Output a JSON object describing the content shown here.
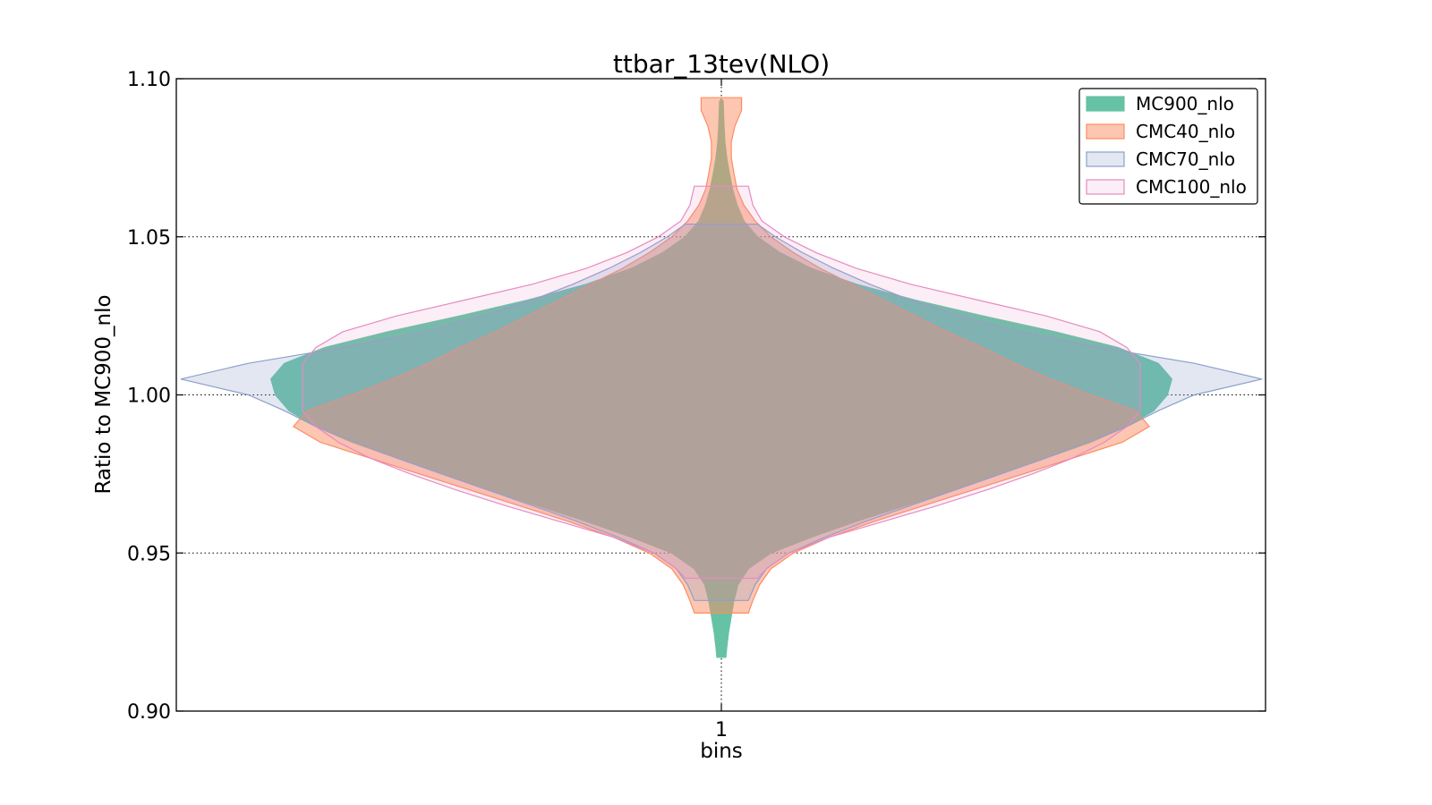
{
  "chart_data": {
    "type": "violin",
    "title": "ttbar_13tev(NLO)",
    "xlabel": "bins",
    "ylabel": "Ratio to MC900_nlo",
    "categories": [
      "1"
    ],
    "ylim": [
      0.9,
      1.1
    ],
    "yticks": [
      0.9,
      0.95,
      1.0,
      1.05,
      1.1
    ],
    "ytick_labels": [
      "0.90",
      "0.95",
      "1.00",
      "1.05",
      "1.10"
    ],
    "grid": true,
    "legend_position": "top-right",
    "series": [
      {
        "name": "MC900_nlo",
        "fill": "#66c2a5",
        "stroke": "#66c2a5",
        "fill_opacity": 1.0,
        "min": 0.917,
        "max": 1.093,
        "profile": [
          [
            0.917,
            0.01
          ],
          [
            0.92,
            0.012
          ],
          [
            0.925,
            0.016
          ],
          [
            0.93,
            0.022
          ],
          [
            0.935,
            0.028
          ],
          [
            0.94,
            0.037
          ],
          [
            0.945,
            0.06
          ],
          [
            0.95,
            0.11
          ],
          [
            0.955,
            0.2
          ],
          [
            0.96,
            0.3
          ],
          [
            0.965,
            0.41
          ],
          [
            0.97,
            0.52
          ],
          [
            0.975,
            0.62
          ],
          [
            0.98,
            0.72
          ],
          [
            0.985,
            0.82
          ],
          [
            0.99,
            0.9
          ],
          [
            0.995,
            0.96
          ],
          [
            1.0,
            0.99
          ],
          [
            1.005,
            1.0
          ],
          [
            1.01,
            0.97
          ],
          [
            1.015,
            0.88
          ],
          [
            1.02,
            0.74
          ],
          [
            1.025,
            0.58
          ],
          [
            1.03,
            0.43
          ],
          [
            1.035,
            0.3
          ],
          [
            1.04,
            0.2
          ],
          [
            1.045,
            0.13
          ],
          [
            1.05,
            0.08
          ],
          [
            1.055,
            0.05
          ],
          [
            1.06,
            0.035
          ],
          [
            1.065,
            0.025
          ],
          [
            1.07,
            0.018
          ],
          [
            1.075,
            0.012
          ],
          [
            1.08,
            0.008
          ],
          [
            1.085,
            0.006
          ],
          [
            1.093,
            0.004
          ]
        ]
      },
      {
        "name": "CMC40_nlo",
        "fill": "#fc8d62",
        "stroke": "#fc8d62",
        "fill_opacity": 0.5,
        "min": 0.931,
        "max": 1.094,
        "profile": [
          [
            0.931,
            0.06
          ],
          [
            0.935,
            0.07
          ],
          [
            0.94,
            0.085
          ],
          [
            0.945,
            0.11
          ],
          [
            0.95,
            0.16
          ],
          [
            0.955,
            0.24
          ],
          [
            0.96,
            0.34
          ],
          [
            0.965,
            0.45
          ],
          [
            0.97,
            0.56
          ],
          [
            0.975,
            0.67
          ],
          [
            0.98,
            0.78
          ],
          [
            0.985,
            0.89
          ],
          [
            0.99,
            0.95
          ],
          [
            0.995,
            0.92
          ],
          [
            1.0,
            0.82
          ],
          [
            1.005,
            0.73
          ],
          [
            1.01,
            0.65
          ],
          [
            1.015,
            0.58
          ],
          [
            1.02,
            0.5
          ],
          [
            1.025,
            0.43
          ],
          [
            1.03,
            0.36
          ],
          [
            1.035,
            0.29
          ],
          [
            1.04,
            0.22
          ],
          [
            1.045,
            0.16
          ],
          [
            1.05,
            0.11
          ],
          [
            1.055,
            0.075
          ],
          [
            1.06,
            0.05
          ],
          [
            1.065,
            0.035
          ],
          [
            1.07,
            0.028
          ],
          [
            1.075,
            0.022
          ],
          [
            1.08,
            0.022
          ],
          [
            1.085,
            0.03
          ],
          [
            1.09,
            0.045
          ],
          [
            1.094,
            0.045
          ]
        ]
      },
      {
        "name": "CMC70_nlo",
        "fill": "#8da0cb",
        "stroke": "#8da0cb",
        "fill_opacity": 0.25,
        "min": 0.935,
        "max": 1.054,
        "profile": [
          [
            0.935,
            0.06
          ],
          [
            0.94,
            0.075
          ],
          [
            0.945,
            0.1
          ],
          [
            0.95,
            0.15
          ],
          [
            0.955,
            0.23
          ],
          [
            0.96,
            0.32
          ],
          [
            0.965,
            0.42
          ],
          [
            0.97,
            0.52
          ],
          [
            0.975,
            0.62
          ],
          [
            0.98,
            0.72
          ],
          [
            0.985,
            0.81
          ],
          [
            0.99,
            0.9
          ],
          [
            0.995,
            0.97
          ],
          [
            1.0,
            1.05
          ],
          [
            1.005,
            1.2
          ],
          [
            1.01,
            1.05
          ],
          [
            1.015,
            0.84
          ],
          [
            1.02,
            0.66
          ],
          [
            1.025,
            0.53
          ],
          [
            1.03,
            0.42
          ],
          [
            1.035,
            0.33
          ],
          [
            1.04,
            0.25
          ],
          [
            1.045,
            0.18
          ],
          [
            1.05,
            0.12
          ],
          [
            1.054,
            0.08
          ]
        ]
      },
      {
        "name": "CMC100_nlo",
        "fill": "#e78ac3",
        "stroke": "#e78ac3",
        "fill_opacity": 0.15,
        "min": 0.942,
        "max": 1.066,
        "profile": [
          [
            0.942,
            0.08
          ],
          [
            0.945,
            0.1
          ],
          [
            0.95,
            0.15
          ],
          [
            0.955,
            0.24
          ],
          [
            0.96,
            0.36
          ],
          [
            0.965,
            0.48
          ],
          [
            0.97,
            0.59
          ],
          [
            0.975,
            0.69
          ],
          [
            0.98,
            0.78
          ],
          [
            0.985,
            0.85
          ],
          [
            0.99,
            0.9
          ],
          [
            0.995,
            0.93
          ],
          [
            1.0,
            0.93
          ],
          [
            1.005,
            0.93
          ],
          [
            1.01,
            0.93
          ],
          [
            1.015,
            0.9
          ],
          [
            1.02,
            0.84
          ],
          [
            1.025,
            0.72
          ],
          [
            1.03,
            0.57
          ],
          [
            1.035,
            0.42
          ],
          [
            1.04,
            0.3
          ],
          [
            1.045,
            0.21
          ],
          [
            1.05,
            0.14
          ],
          [
            1.055,
            0.09
          ],
          [
            1.06,
            0.07
          ],
          [
            1.066,
            0.06
          ]
        ]
      }
    ]
  }
}
